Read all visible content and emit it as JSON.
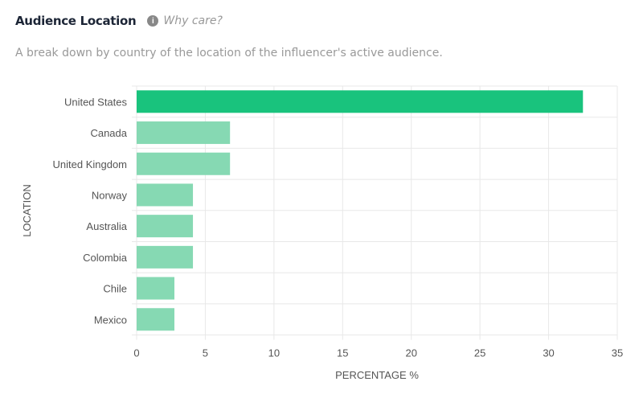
{
  "header": {
    "title": "Audience Location",
    "info_icon": "info-circle-icon",
    "why_care": "Why care?",
    "subtitle": "A break down by country of the location of the influencer's active audience."
  },
  "chart_data": {
    "type": "bar",
    "orientation": "horizontal",
    "categories": [
      "United States",
      "Canada",
      "United Kingdom",
      "Norway",
      "Australia",
      "Colombia",
      "Chile",
      "Mexico"
    ],
    "values": [
      32.5,
      6.8,
      6.8,
      4.1,
      4.1,
      4.1,
      2.75,
      2.75
    ],
    "colors": {
      "highlight": "#19c37d",
      "default": "#86d9b3",
      "grid": "#e8e8e8"
    },
    "xlabel": "PERCENTAGE %",
    "ylabel": "LOCATION",
    "xlim": [
      0,
      35
    ],
    "xticks": [
      "0",
      "5",
      "10",
      "15",
      "20",
      "25",
      "30",
      "35"
    ],
    "grid": true
  }
}
